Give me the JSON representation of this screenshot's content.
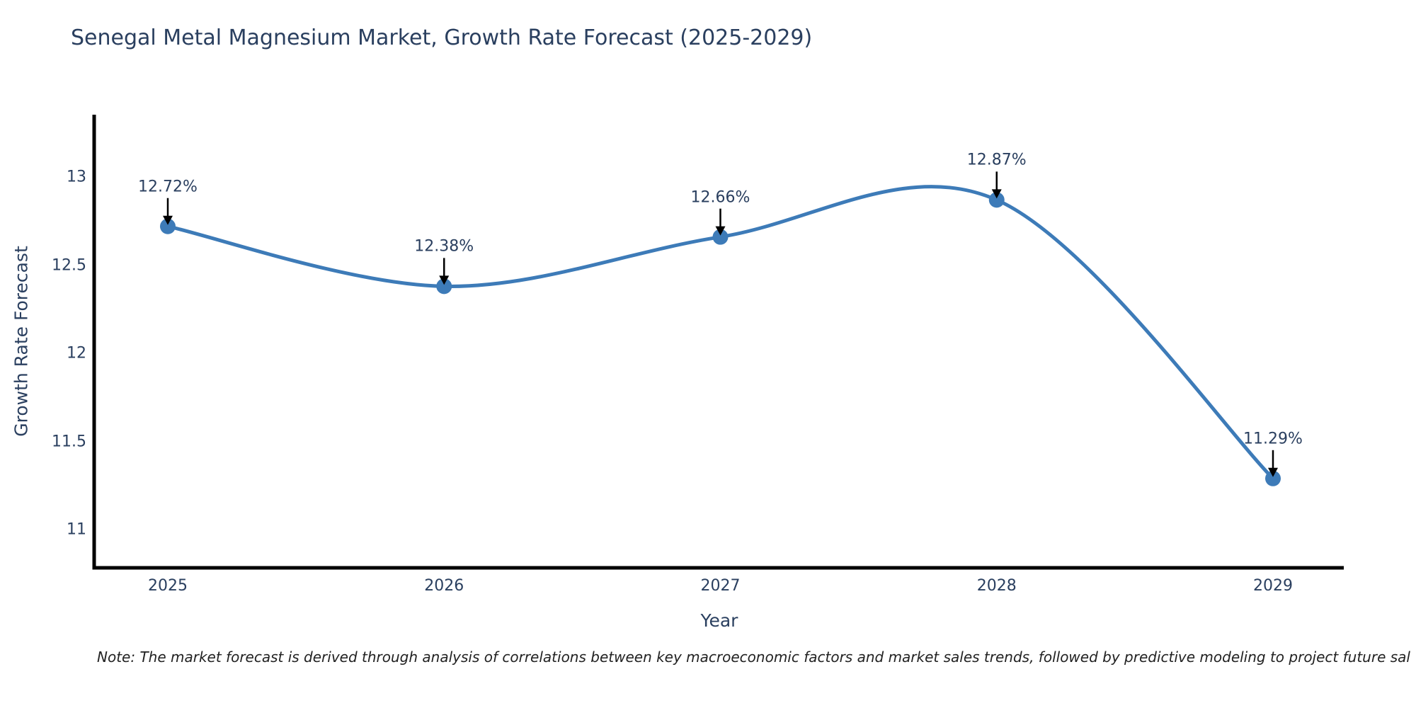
{
  "chart": {
    "title": "Senegal Metal Magnesium Market, Growth Rate Forecast (2025-2029)",
    "xlabel": "Year",
    "ylabel": "Growth Rate Forecast",
    "note": "Note: The market forecast is derived through analysis of correlations between key macroeconomic factors and market sales trends, followed by predictive modeling to project future sal"
  },
  "chart_data": {
    "type": "line",
    "line_shape": "spline",
    "title": "Senegal Metal Magnesium Market, Growth Rate Forecast (2025-2029)",
    "xlabel": "Year",
    "ylabel": "Growth Rate Forecast",
    "categories": [
      "2025",
      "2026",
      "2027",
      "2028",
      "2029"
    ],
    "series": [
      {
        "name": "Growth Rate Forecast",
        "values": [
          12.72,
          12.38,
          12.66,
          12.87,
          11.29
        ],
        "point_labels": [
          "12.72%",
          "12.38%",
          "12.66%",
          "12.87%",
          "11.29%"
        ]
      }
    ],
    "yticks": [
      11,
      11.5,
      12,
      12.5,
      13
    ],
    "ytick_labels": [
      "11",
      "11.5",
      "12",
      "12.5",
      "13"
    ],
    "ylim": [
      10.78,
      13.35
    ],
    "grid": false,
    "legend_position": "none",
    "annotations": "value labels with black arrows pointing down to each marker",
    "colors": {
      "line": "#3d7bb8",
      "marker": "#3d7bb8",
      "axis_line": "#000000",
      "text": "#2a3f5f",
      "arrow": "#000000",
      "background": "#ffffff",
      "note_text": "#222222"
    }
  }
}
